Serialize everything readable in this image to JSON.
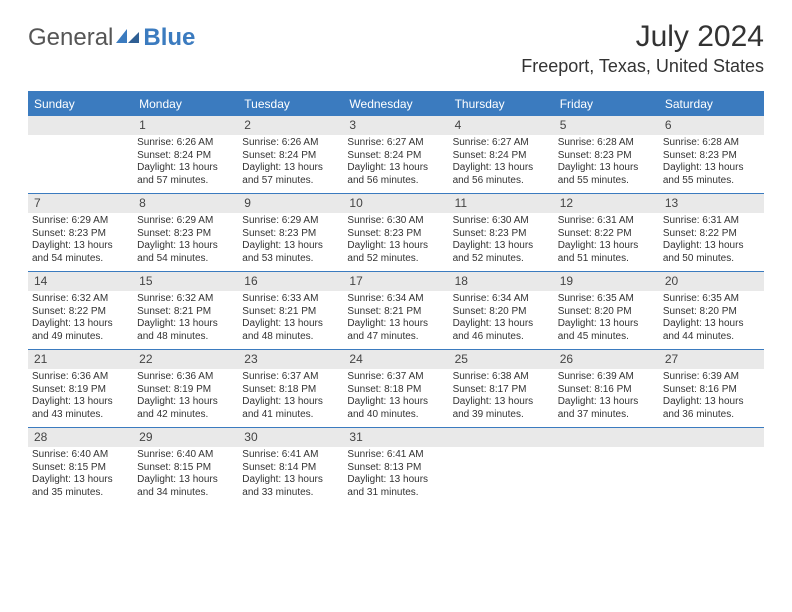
{
  "brand": {
    "word1": "General",
    "word2": "Blue"
  },
  "title": "July 2024",
  "location": "Freeport, Texas, United States",
  "colors": {
    "accent": "#3b7bbf",
    "daynum_bg": "#e9e9e9",
    "text": "#333333"
  },
  "weekdays": [
    "Sunday",
    "Monday",
    "Tuesday",
    "Wednesday",
    "Thursday",
    "Friday",
    "Saturday"
  ],
  "layout": {
    "first_weekday_index": 1,
    "days_in_month": 31
  },
  "days": {
    "1": {
      "sunrise": "6:26 AM",
      "sunset": "8:24 PM",
      "daylight": "13 hours and 57 minutes."
    },
    "2": {
      "sunrise": "6:26 AM",
      "sunset": "8:24 PM",
      "daylight": "13 hours and 57 minutes."
    },
    "3": {
      "sunrise": "6:27 AM",
      "sunset": "8:24 PM",
      "daylight": "13 hours and 56 minutes."
    },
    "4": {
      "sunrise": "6:27 AM",
      "sunset": "8:24 PM",
      "daylight": "13 hours and 56 minutes."
    },
    "5": {
      "sunrise": "6:28 AM",
      "sunset": "8:23 PM",
      "daylight": "13 hours and 55 minutes."
    },
    "6": {
      "sunrise": "6:28 AM",
      "sunset": "8:23 PM",
      "daylight": "13 hours and 55 minutes."
    },
    "7": {
      "sunrise": "6:29 AM",
      "sunset": "8:23 PM",
      "daylight": "13 hours and 54 minutes."
    },
    "8": {
      "sunrise": "6:29 AM",
      "sunset": "8:23 PM",
      "daylight": "13 hours and 54 minutes."
    },
    "9": {
      "sunrise": "6:29 AM",
      "sunset": "8:23 PM",
      "daylight": "13 hours and 53 minutes."
    },
    "10": {
      "sunrise": "6:30 AM",
      "sunset": "8:23 PM",
      "daylight": "13 hours and 52 minutes."
    },
    "11": {
      "sunrise": "6:30 AM",
      "sunset": "8:23 PM",
      "daylight": "13 hours and 52 minutes."
    },
    "12": {
      "sunrise": "6:31 AM",
      "sunset": "8:22 PM",
      "daylight": "13 hours and 51 minutes."
    },
    "13": {
      "sunrise": "6:31 AM",
      "sunset": "8:22 PM",
      "daylight": "13 hours and 50 minutes."
    },
    "14": {
      "sunrise": "6:32 AM",
      "sunset": "8:22 PM",
      "daylight": "13 hours and 49 minutes."
    },
    "15": {
      "sunrise": "6:32 AM",
      "sunset": "8:21 PM",
      "daylight": "13 hours and 48 minutes."
    },
    "16": {
      "sunrise": "6:33 AM",
      "sunset": "8:21 PM",
      "daylight": "13 hours and 48 minutes."
    },
    "17": {
      "sunrise": "6:34 AM",
      "sunset": "8:21 PM",
      "daylight": "13 hours and 47 minutes."
    },
    "18": {
      "sunrise": "6:34 AM",
      "sunset": "8:20 PM",
      "daylight": "13 hours and 46 minutes."
    },
    "19": {
      "sunrise": "6:35 AM",
      "sunset": "8:20 PM",
      "daylight": "13 hours and 45 minutes."
    },
    "20": {
      "sunrise": "6:35 AM",
      "sunset": "8:20 PM",
      "daylight": "13 hours and 44 minutes."
    },
    "21": {
      "sunrise": "6:36 AM",
      "sunset": "8:19 PM",
      "daylight": "13 hours and 43 minutes."
    },
    "22": {
      "sunrise": "6:36 AM",
      "sunset": "8:19 PM",
      "daylight": "13 hours and 42 minutes."
    },
    "23": {
      "sunrise": "6:37 AM",
      "sunset": "8:18 PM",
      "daylight": "13 hours and 41 minutes."
    },
    "24": {
      "sunrise": "6:37 AM",
      "sunset": "8:18 PM",
      "daylight": "13 hours and 40 minutes."
    },
    "25": {
      "sunrise": "6:38 AM",
      "sunset": "8:17 PM",
      "daylight": "13 hours and 39 minutes."
    },
    "26": {
      "sunrise": "6:39 AM",
      "sunset": "8:16 PM",
      "daylight": "13 hours and 37 minutes."
    },
    "27": {
      "sunrise": "6:39 AM",
      "sunset": "8:16 PM",
      "daylight": "13 hours and 36 minutes."
    },
    "28": {
      "sunrise": "6:40 AM",
      "sunset": "8:15 PM",
      "daylight": "13 hours and 35 minutes."
    },
    "29": {
      "sunrise": "6:40 AM",
      "sunset": "8:15 PM",
      "daylight": "13 hours and 34 minutes."
    },
    "30": {
      "sunrise": "6:41 AM",
      "sunset": "8:14 PM",
      "daylight": "13 hours and 33 minutes."
    },
    "31": {
      "sunrise": "6:41 AM",
      "sunset": "8:13 PM",
      "daylight": "13 hours and 31 minutes."
    }
  },
  "labels": {
    "sunrise_prefix": "Sunrise: ",
    "sunset_prefix": "Sunset: ",
    "daylight_prefix": "Daylight: "
  }
}
